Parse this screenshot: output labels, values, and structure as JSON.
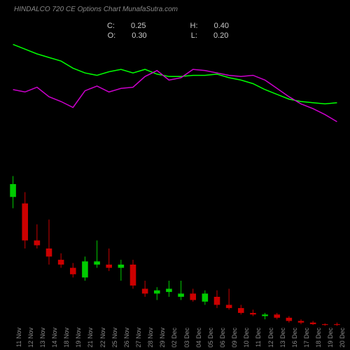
{
  "title": "HINDALCO 720 CE Options Chart MunafaSutra.com",
  "ohlc": {
    "C": "0.25",
    "O": "0.30",
    "H": "0.40",
    "L": "0.20"
  },
  "colors": {
    "background": "#000000",
    "text": "#cccccc",
    "text_dim": "#888888",
    "line_a": "#00ff00",
    "line_b": "#cc00cc",
    "candle_up": "#00cc00",
    "candle_down": "#cc0000"
  },
  "chart": {
    "type": "candlestick_with_indicators",
    "indicator_ylim": [
      0,
      100
    ],
    "price_ylim": [
      0,
      10
    ],
    "categories": [
      "11 Nov",
      "12 Nov",
      "13 Nov",
      "14 Nov",
      "18 Nov",
      "19 Nov",
      "21 Nov",
      "22 Nov",
      "25 Nov",
      "26 Nov",
      "27 Nov",
      "28 Nov",
      "29 Nov",
      "02 Dec",
      "03 Dec",
      "04 Dec",
      "05 Dec",
      "06 Dec",
      "09 Dec",
      "10 Dec",
      "11 Dec",
      "12 Dec",
      "13 Dec",
      "16 Dec",
      "17 Dec",
      "18 Dec",
      "19 Dec",
      "20 Dec"
    ],
    "line_a_values": [
      98,
      94,
      90,
      87,
      84,
      78,
      74,
      72,
      75,
      77,
      74,
      77,
      73,
      71,
      71,
      72,
      72,
      73,
      70,
      68,
      65,
      60,
      56,
      52,
      50,
      49,
      48,
      49
    ],
    "line_b_values": [
      60,
      58,
      62,
      54,
      50,
      45,
      59,
      63,
      58,
      61,
      62,
      71,
      76,
      68,
      70,
      77,
      76,
      74,
      72,
      71,
      72,
      68,
      61,
      54,
      48,
      44,
      39,
      33
    ],
    "candles": [
      {
        "o": 8.2,
        "h": 9.5,
        "l": 7.5,
        "c": 9.0,
        "dir": "up"
      },
      {
        "o": 7.8,
        "h": 8.5,
        "l": 5.0,
        "c": 5.5,
        "dir": "down"
      },
      {
        "o": 5.5,
        "h": 6.5,
        "l": 5.0,
        "c": 5.2,
        "dir": "down"
      },
      {
        "o": 5.0,
        "h": 6.8,
        "l": 4.0,
        "c": 4.5,
        "dir": "down"
      },
      {
        "o": 4.3,
        "h": 4.7,
        "l": 3.8,
        "c": 4.0,
        "dir": "down"
      },
      {
        "o": 3.8,
        "h": 4.1,
        "l": 3.2,
        "c": 3.4,
        "dir": "down"
      },
      {
        "o": 3.2,
        "h": 4.5,
        "l": 3.0,
        "c": 4.2,
        "dir": "up"
      },
      {
        "o": 4.0,
        "h": 5.5,
        "l": 3.8,
        "c": 4.2,
        "dir": "up"
      },
      {
        "o": 4.0,
        "h": 5.0,
        "l": 3.6,
        "c": 3.8,
        "dir": "down"
      },
      {
        "o": 3.8,
        "h": 4.3,
        "l": 3.0,
        "c": 4.0,
        "dir": "up"
      },
      {
        "o": 4.0,
        "h": 4.3,
        "l": 2.5,
        "c": 2.7,
        "dir": "down"
      },
      {
        "o": 2.5,
        "h": 3.0,
        "l": 2.0,
        "c": 2.2,
        "dir": "down"
      },
      {
        "o": 2.2,
        "h": 2.6,
        "l": 1.8,
        "c": 2.4,
        "dir": "up"
      },
      {
        "o": 2.3,
        "h": 3.0,
        "l": 2.0,
        "c": 2.5,
        "dir": "up"
      },
      {
        "o": 2.0,
        "h": 3.0,
        "l": 1.8,
        "c": 2.2,
        "dir": "up"
      },
      {
        "o": 2.2,
        "h": 2.5,
        "l": 1.7,
        "c": 1.8,
        "dir": "down"
      },
      {
        "o": 1.7,
        "h": 2.4,
        "l": 1.5,
        "c": 2.2,
        "dir": "up"
      },
      {
        "o": 2.0,
        "h": 2.4,
        "l": 1.3,
        "c": 1.5,
        "dir": "down"
      },
      {
        "o": 1.5,
        "h": 2.5,
        "l": 1.2,
        "c": 1.3,
        "dir": "down"
      },
      {
        "o": 1.3,
        "h": 1.5,
        "l": 0.9,
        "c": 1.0,
        "dir": "down"
      },
      {
        "o": 1.0,
        "h": 1.2,
        "l": 0.8,
        "c": 0.9,
        "dir": "down"
      },
      {
        "o": 0.8,
        "h": 1.0,
        "l": 0.6,
        "c": 0.9,
        "dir": "up"
      },
      {
        "o": 0.9,
        "h": 1.0,
        "l": 0.6,
        "c": 0.7,
        "dir": "down"
      },
      {
        "o": 0.7,
        "h": 0.8,
        "l": 0.4,
        "c": 0.5,
        "dir": "down"
      },
      {
        "o": 0.5,
        "h": 0.6,
        "l": 0.3,
        "c": 0.4,
        "dir": "down"
      },
      {
        "o": 0.4,
        "h": 0.5,
        "l": 0.25,
        "c": 0.3,
        "dir": "down"
      },
      {
        "o": 0.3,
        "h": 0.35,
        "l": 0.2,
        "c": 0.25,
        "dir": "down"
      },
      {
        "o": 0.3,
        "h": 0.4,
        "l": 0.2,
        "c": 0.25,
        "dir": "down"
      }
    ]
  }
}
